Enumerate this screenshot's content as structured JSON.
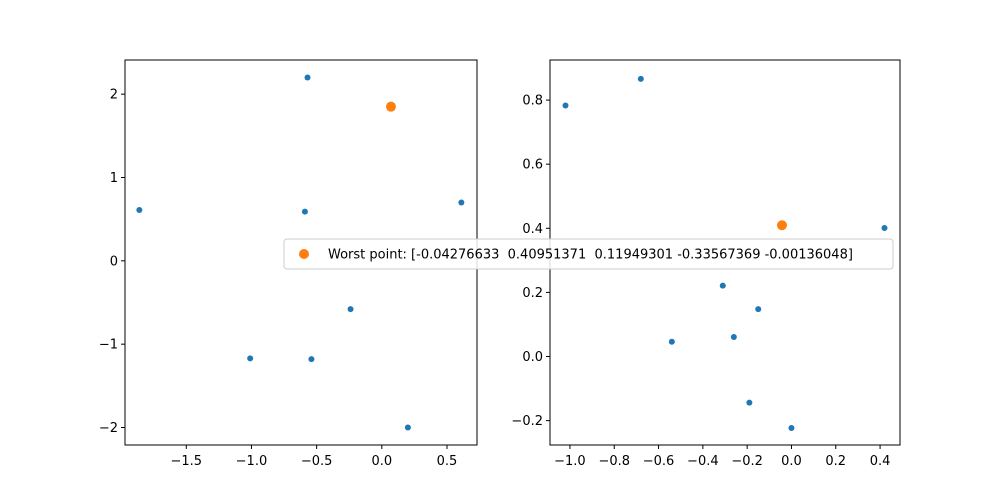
{
  "colors": {
    "points": "#1f77b4",
    "worst": "#ff7f0e",
    "axes": "#000000",
    "background": "#ffffff",
    "legend_border": "#cccccc"
  },
  "legend": {
    "label": "Worst point: [-0.04276633  0.40951371  0.11949301 -0.33567369 -0.00136048]",
    "placement": "center"
  },
  "chart_data": [
    {
      "type": "scatter",
      "xlim": [
        -1.97,
        0.73
      ],
      "ylim": [
        -2.21,
        2.41
      ],
      "xticks": [
        -1.5,
        -1.0,
        -0.5,
        0.0,
        0.5
      ],
      "xtick_labels": [
        "−1.5",
        "−1.0",
        "−0.5",
        "0.0",
        "0.5"
      ],
      "yticks": [
        -2,
        -1,
        0,
        1,
        2
      ],
      "ytick_labels": [
        "−2",
        "−1",
        "0",
        "1",
        "2"
      ],
      "grid": false,
      "series": [
        {
          "points": [
            {
              "x": -0.57,
              "y": 2.2
            },
            {
              "x": -1.86,
              "y": 0.61
            },
            {
              "x": -0.59,
              "y": 0.59
            },
            {
              "x": 0.61,
              "y": 0.7
            },
            {
              "x": -0.24,
              "y": -0.58
            },
            {
              "x": -1.01,
              "y": -1.17
            },
            {
              "x": -0.54,
              "y": -1.18
            },
            {
              "x": 0.2,
              "y": -2.0
            }
          ]
        },
        {
          "points": [
            {
              "x": 0.07,
              "y": 1.85
            }
          ]
        }
      ]
    },
    {
      "type": "scatter",
      "xlim": [
        -1.09,
        0.49
      ],
      "ylim": [
        -0.276,
        0.925
      ],
      "xticks": [
        -1.0,
        -0.8,
        -0.6,
        -0.4,
        -0.2,
        0.0,
        0.2,
        0.4
      ],
      "xtick_labels": [
        "−1.0",
        "−0.8",
        "−0.6",
        "−0.4",
        "−0.2",
        "0.0",
        "0.2",
        "0.4"
      ],
      "yticks": [
        -0.2,
        0.0,
        0.2,
        0.4,
        0.6,
        0.8
      ],
      "ytick_labels": [
        "−0.2",
        "0.0",
        "0.2",
        "0.4",
        "0.6",
        "0.8"
      ],
      "grid": false,
      "series": [
        {
          "points": [
            {
              "x": -1.02,
              "y": 0.783
            },
            {
              "x": -0.68,
              "y": 0.866
            },
            {
              "x": 0.42,
              "y": 0.401
            },
            {
              "x": -0.31,
              "y": 0.221
            },
            {
              "x": -0.15,
              "y": 0.148
            },
            {
              "x": -0.26,
              "y": 0.061
            },
            {
              "x": -0.54,
              "y": 0.046
            },
            {
              "x": -0.19,
              "y": -0.144
            },
            {
              "x": 0.0,
              "y": -0.223
            }
          ]
        },
        {
          "points": [
            {
              "x": -0.04276633,
              "y": 0.40951371
            }
          ]
        }
      ]
    }
  ]
}
